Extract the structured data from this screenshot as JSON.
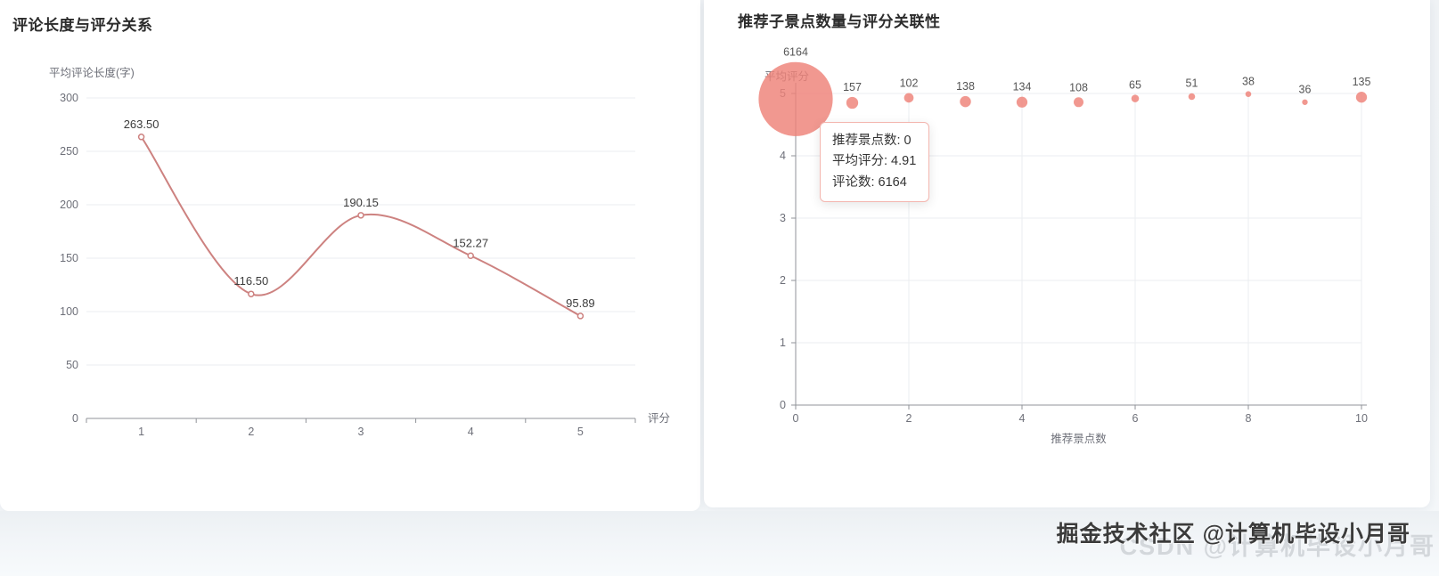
{
  "page": {
    "background": "#eff2f5",
    "card_background": "#ffffff"
  },
  "watermark": {
    "text": "掘金技术社区 @计算机毕设小月哥",
    "ghost_text": "CSDN @计算机毕设小月哥"
  },
  "colors": {
    "line": "#cd8280",
    "bubble": "#ee8178",
    "axis": "#909399",
    "grid": "#ebedf0",
    "tick_text": "#6e7079",
    "label_text": "#3c3c3c",
    "tooltip_border": "#f3b6af"
  },
  "chart_data": [
    {
      "type": "line",
      "title": "评论长度与评分关系",
      "ylabel": "平均评论长度(字)",
      "xlabel": "评分",
      "categories": [
        "1",
        "2",
        "3",
        "4",
        "5"
      ],
      "values": [
        263.5,
        116.5,
        190.15,
        152.27,
        95.89
      ],
      "labels": [
        "263.50",
        "116.50",
        "190.15",
        "152.27",
        "95.89"
      ],
      "ylim": [
        0,
        300
      ],
      "yticks": [
        0,
        50,
        100,
        150,
        200,
        250,
        300
      ],
      "grid": "horizontal",
      "smooth": true,
      "legend": "none",
      "marker": "empty-circle"
    },
    {
      "type": "scatter",
      "title": "推荐子景点数量与评分关联性",
      "ylabel": "平均评分",
      "xlabel": "推荐景点数",
      "x": [
        0,
        1,
        2,
        3,
        4,
        5,
        6,
        7,
        8,
        9,
        10
      ],
      "y": [
        4.91,
        4.85,
        4.93,
        4.87,
        4.86,
        4.86,
        4.92,
        4.95,
        4.99,
        4.86,
        4.94
      ],
      "sizes": [
        6164,
        157,
        102,
        138,
        134,
        108,
        65,
        51,
        38,
        36,
        135
      ],
      "size_labels": [
        "6164",
        "157",
        "102",
        "138",
        "134",
        "108",
        "65",
        "51",
        "38",
        "36",
        "135"
      ],
      "xlim": [
        0,
        10
      ],
      "ylim": [
        0,
        5
      ],
      "xticks": [
        0,
        2,
        4,
        6,
        8,
        10
      ],
      "yticks": [
        0,
        1,
        2,
        3,
        4,
        5
      ],
      "grid": "both",
      "legend": "none",
      "tooltip": {
        "rows": [
          {
            "label": "推荐景点数",
            "value": "0"
          },
          {
            "label": "平均评分",
            "value": "4.91"
          },
          {
            "label": "评论数",
            "value": "6164"
          }
        ]
      }
    }
  ]
}
